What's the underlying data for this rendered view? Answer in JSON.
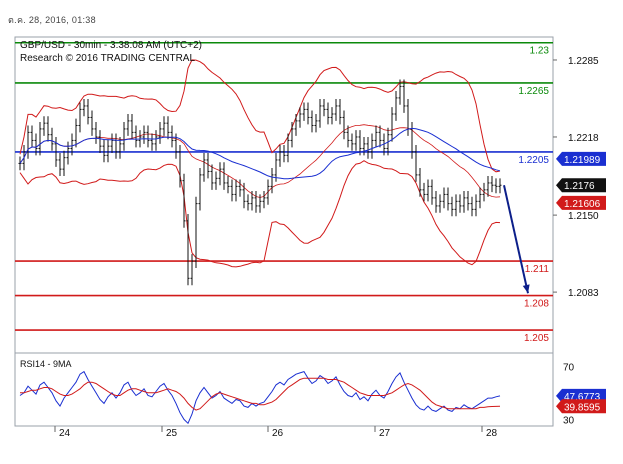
{
  "header": {
    "date_time": "ต.ค. 28, 2016, 01:38"
  },
  "chart_data": {
    "type": "line",
    "title": "GBP/USD - 30min - 3:38:08 AM (UTC+2)",
    "subtitle": "Research © 2016 TRADING CENTRAL",
    "price_panel": {
      "ylim": [
        1.203,
        1.2305
      ],
      "y_ticks": [
        "1.2285",
        "1.2218",
        "1.2150",
        "1.2083"
      ],
      "y_tick_values": [
        1.2285,
        1.2218,
        1.215,
        1.2083
      ],
      "levels": [
        {
          "label": "1.23",
          "value": 1.23,
          "color": "#0b8a0b"
        },
        {
          "label": "1.2265",
          "value": 1.2265,
          "color": "#0b8a0b"
        },
        {
          "label": "1.2205",
          "value": 1.2205,
          "color": "#1a2fd1"
        },
        {
          "label": "1.211",
          "value": 1.211,
          "color": "#d11a1a"
        },
        {
          "label": "1.208",
          "value": 1.208,
          "color": "#d11a1a"
        },
        {
          "label": "1.205",
          "value": 1.205,
          "color": "#d11a1a"
        }
      ],
      "price_tags": [
        {
          "label": "1.21989",
          "value": 1.21989,
          "color": "#1a2fd1"
        },
        {
          "label": "1.2176",
          "value": 1.2176,
          "color": "#111111"
        },
        {
          "label": "1.21606",
          "value": 1.21606,
          "color": "#d11a1a"
        }
      ],
      "close_series": {
        "x": [
          0,
          2,
          4,
          6,
          8,
          10,
          12,
          14,
          16,
          18,
          20,
          22,
          24,
          26,
          28,
          30,
          32,
          34,
          36,
          38,
          40,
          42,
          44,
          46,
          48,
          50,
          52,
          54,
          56,
          58,
          60,
          62,
          64,
          66,
          68,
          70,
          72,
          74,
          76,
          78,
          80,
          82,
          84,
          86,
          88,
          90,
          92,
          94,
          96,
          98,
          100,
          102,
          104,
          106,
          108,
          110,
          112,
          114,
          116,
          118,
          120,
          122,
          124,
          126,
          128,
          130,
          132,
          134,
          136,
          138,
          140,
          142,
          144,
          146,
          148,
          150,
          152,
          154,
          156,
          158,
          160,
          162,
          164,
          166,
          168,
          170,
          172,
          174,
          176,
          178,
          180,
          182,
          184,
          186,
          188,
          190,
          192,
          194,
          196,
          198,
          200,
          202,
          204,
          206,
          208,
          210,
          212,
          214,
          216,
          218,
          220,
          222,
          224,
          226,
          228,
          230,
          232,
          234,
          236,
          238,
          240
        ],
        "values": [
          1.2195,
          1.2205,
          1.2222,
          1.2215,
          1.2208,
          1.2225,
          1.223,
          1.222,
          1.2212,
          1.2198,
          1.219,
          1.22,
          1.2208,
          1.2215,
          1.2228,
          1.2242,
          1.2245,
          1.2235,
          1.2225,
          1.2218,
          1.221,
          1.2202,
          1.221,
          1.2215,
          1.2205,
          1.2212,
          1.2225,
          1.2232,
          1.2222,
          1.2215,
          1.2218,
          1.2222,
          1.2215,
          1.2212,
          1.2218,
          1.2225,
          1.223,
          1.2222,
          1.2215,
          1.2205,
          1.218,
          1.2145,
          1.2095,
          1.211,
          1.216,
          1.2185,
          1.2198,
          1.2188,
          1.2178,
          1.2182,
          1.219,
          1.2178,
          1.2175,
          1.2168,
          1.2175,
          1.2172,
          1.2162,
          1.216,
          1.2165,
          1.2158,
          1.2162,
          1.2165,
          1.2175,
          1.2185,
          1.2198,
          1.2205,
          1.2202,
          1.2215,
          1.2225,
          1.2232,
          1.2238,
          1.2242,
          1.2235,
          1.2228,
          1.2232,
          1.2245,
          1.2242,
          1.2235,
          1.2238,
          1.2245,
          1.2235,
          1.2222,
          1.2215,
          1.2212,
          1.2218,
          1.2208,
          1.2212,
          1.2205,
          1.2215,
          1.2222,
          1.2215,
          1.2208,
          1.222,
          1.2238,
          1.2252,
          1.2262,
          1.2245,
          1.2225,
          1.2205,
          1.2185,
          1.2172,
          1.2168,
          1.2175,
          1.2165,
          1.2158,
          1.2162,
          1.2168,
          1.216,
          1.2155,
          1.2162,
          1.2158,
          1.2165,
          1.216,
          1.2155,
          1.2162,
          1.2168,
          1.2172,
          1.2178,
          1.2176,
          1.2175,
          1.2176
        ]
      },
      "forecast_arrow": {
        "from": [
          242,
          1.2176
        ],
        "to": [
          254,
          1.2082
        ]
      }
    },
    "rsi_panel": {
      "label": "RSI14 - 9MA",
      "ylim": [
        25,
        80
      ],
      "y_ticks": [
        "70",
        "30"
      ],
      "y_tick_values": [
        70,
        30
      ],
      "tags": [
        {
          "label": "47.6773",
          "value": 47.6773,
          "color": "#1a2fd1"
        },
        {
          "label": "39.8595",
          "value": 39.8595,
          "color": "#d11a1a"
        }
      ],
      "rsi_values": [
        48,
        50,
        55,
        52,
        49,
        56,
        58,
        54,
        50,
        44,
        40,
        46,
        50,
        54,
        58,
        64,
        66,
        60,
        55,
        50,
        45,
        42,
        47,
        50,
        46,
        50,
        56,
        58,
        52,
        48,
        50,
        53,
        48,
        47,
        51,
        55,
        57,
        52,
        48,
        42,
        35,
        30,
        27,
        34,
        44,
        50,
        54,
        50,
        46,
        48,
        51,
        46,
        44,
        42,
        45,
        44,
        40,
        39,
        42,
        40,
        42,
        43,
        47,
        51,
        56,
        58,
        56,
        60,
        62,
        64,
        65,
        66,
        61,
        57,
        59,
        63,
        61,
        57,
        59,
        62,
        56,
        51,
        48,
        47,
        50,
        45,
        47,
        44,
        49,
        52,
        48,
        46,
        51,
        57,
        62,
        65,
        58,
        52,
        46,
        41,
        38,
        37,
        40,
        37,
        36,
        38,
        40,
        37,
        36,
        39,
        38,
        41,
        39,
        38,
        40,
        42,
        44,
        46,
        46,
        47,
        47.68
      ],
      "ma_values": [
        50,
        50,
        51,
        52,
        52,
        53,
        54,
        54,
        53,
        51,
        49,
        48,
        48,
        49,
        51,
        53,
        56,
        58,
        58,
        57,
        55,
        53,
        51,
        49,
        48,
        48,
        50,
        52,
        53,
        53,
        52,
        51,
        50,
        50,
        50,
        51,
        52,
        53,
        52,
        51,
        49,
        46,
        42,
        39,
        37,
        38,
        41,
        44,
        47,
        49,
        50,
        49,
        48,
        47,
        46,
        45,
        44,
        43,
        42,
        42,
        41,
        41,
        42,
        43,
        45,
        48,
        51,
        54,
        56,
        58,
        60,
        61,
        61,
        61,
        61,
        61,
        61,
        60,
        60,
        60,
        59,
        58,
        56,
        54,
        52,
        50,
        49,
        48,
        48,
        48,
        48,
        48,
        49,
        50,
        52,
        54,
        56,
        57,
        56,
        54,
        52,
        49,
        46,
        43,
        41,
        40,
        39,
        38,
        38,
        38,
        38,
        38,
        38,
        38,
        38,
        39,
        39,
        39.5,
        39.7,
        39.8,
        39.86
      ]
    },
    "x_axis": {
      "labels": [
        "24",
        "25",
        "26",
        "27",
        "28"
      ],
      "label_positions": [
        0,
        1,
        2,
        3,
        4
      ]
    }
  }
}
